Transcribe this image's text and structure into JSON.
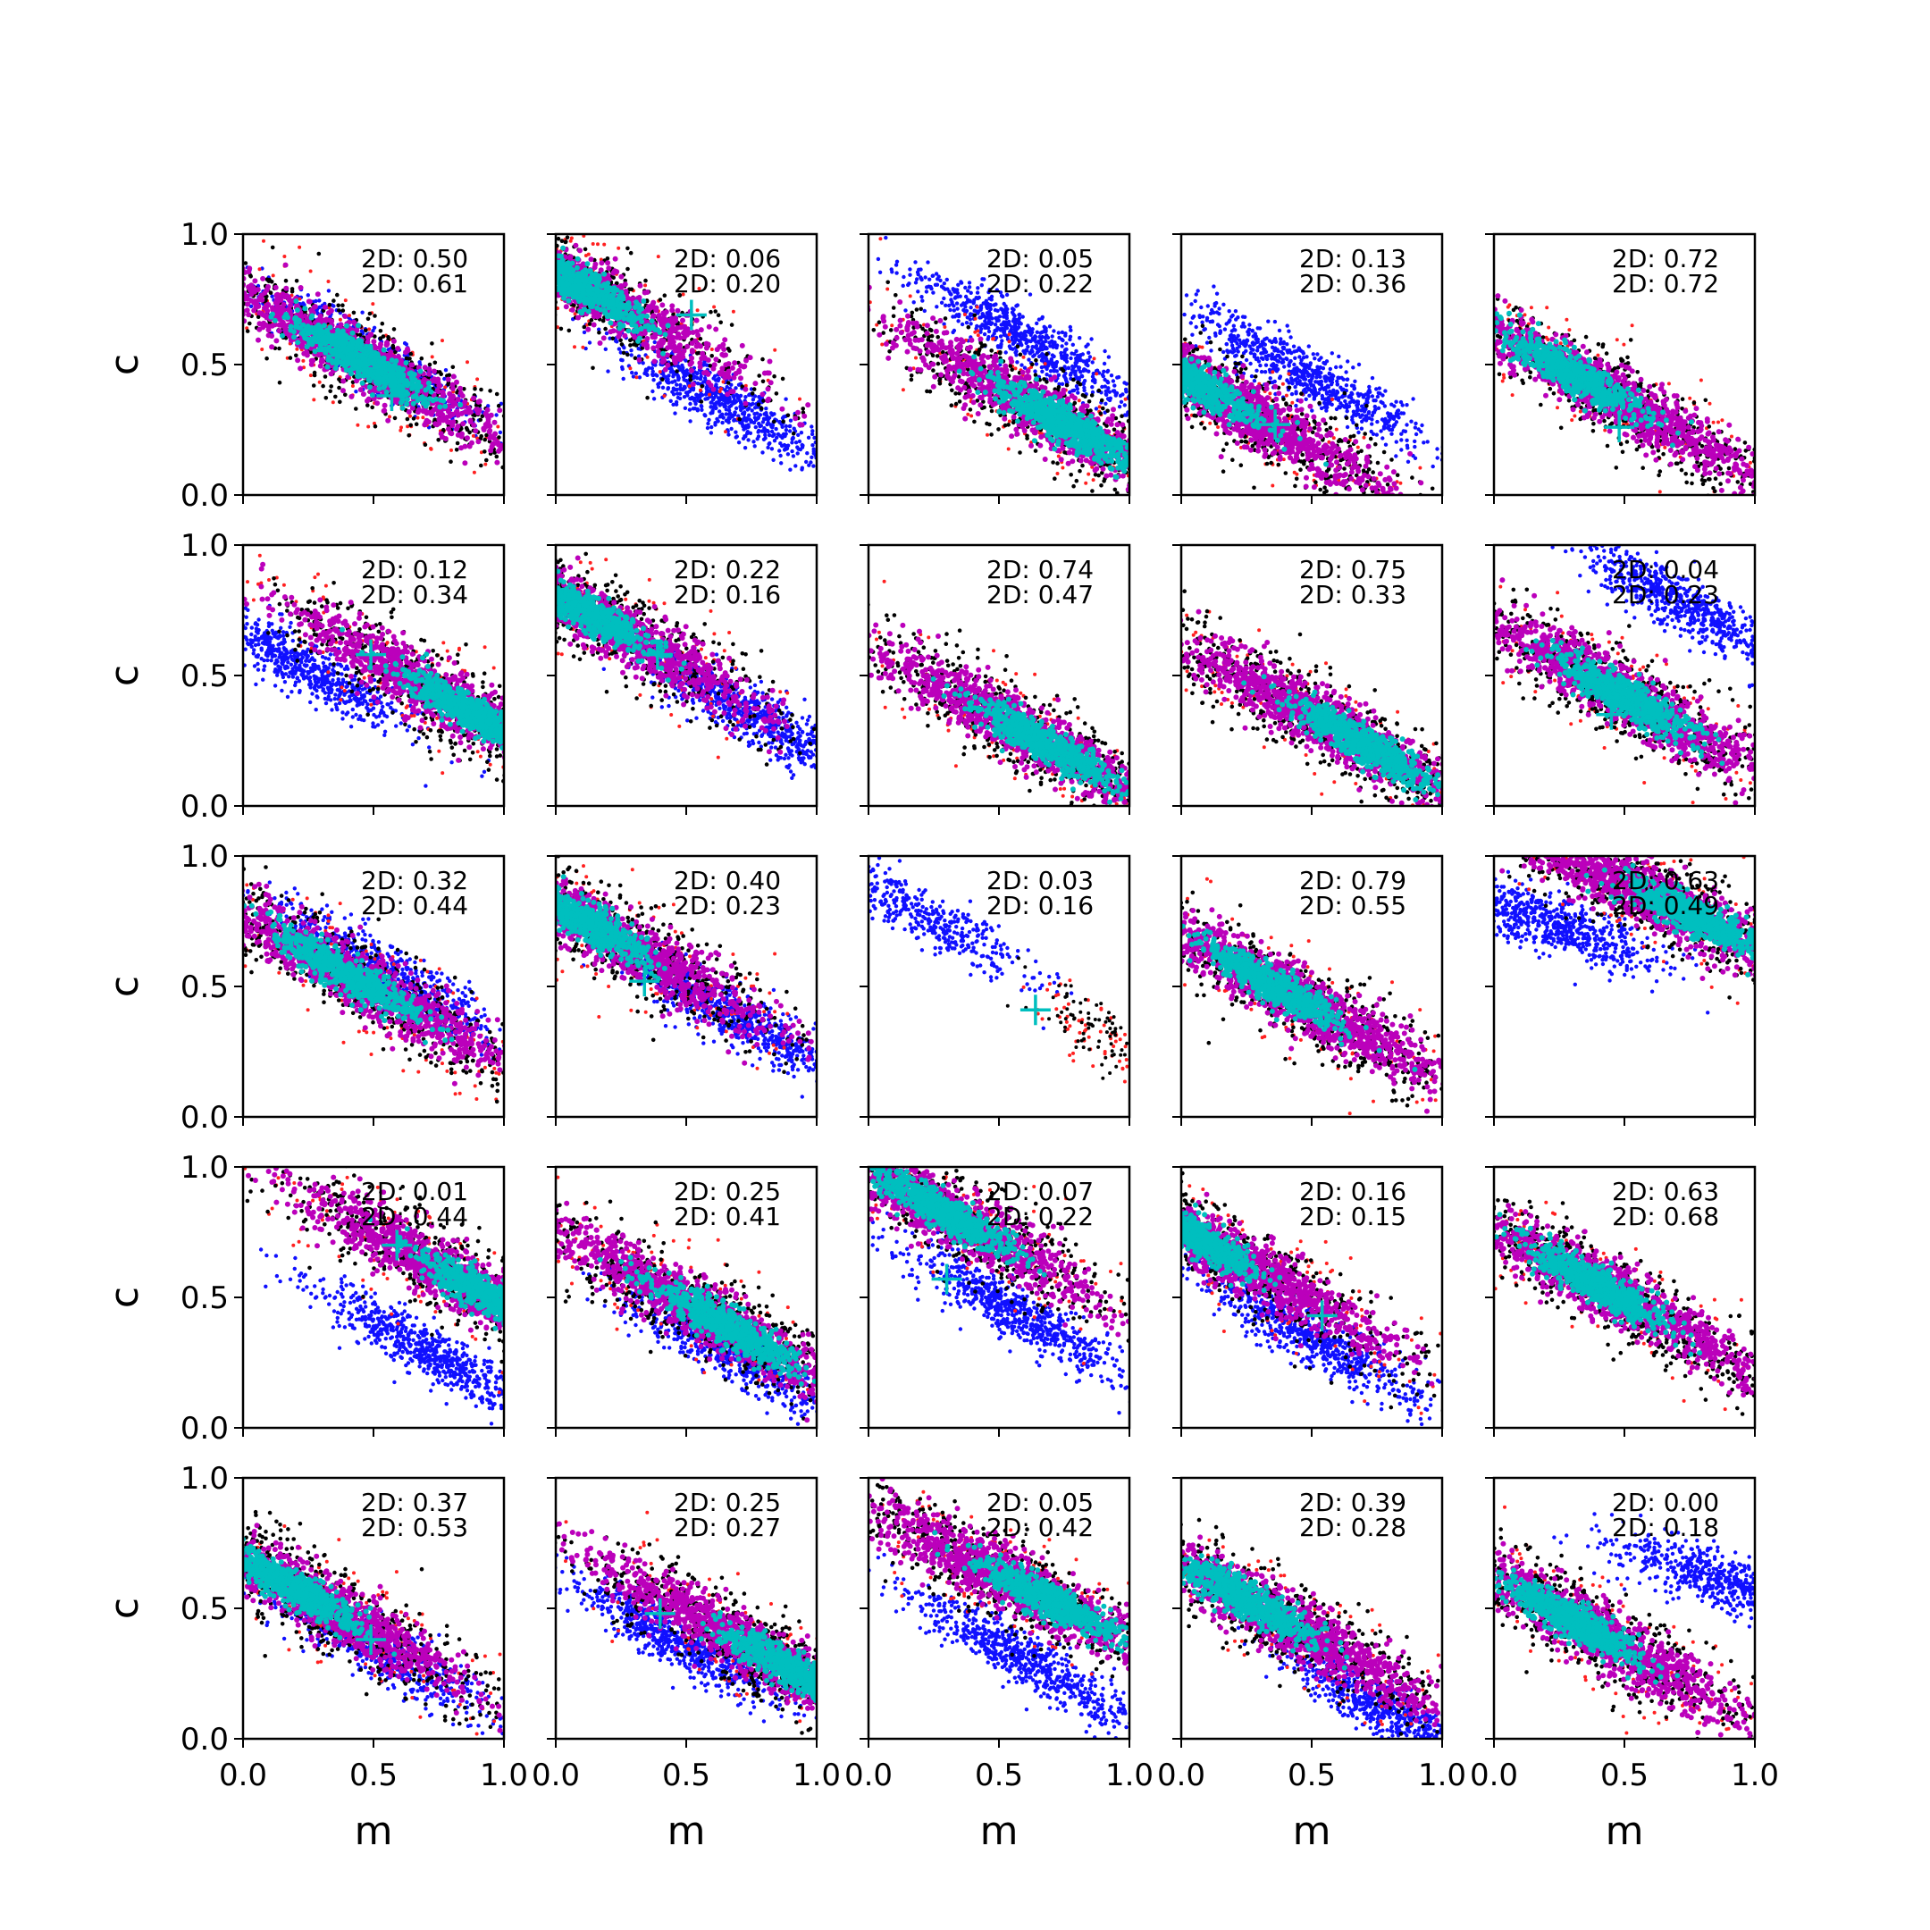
{
  "chart_data": {
    "type": "scatter",
    "layout": {
      "rows": 5,
      "cols": 5
    },
    "xlabel": "m",
    "ylabel": "c",
    "xlim": [
      0,
      1
    ],
    "ylim": [
      0,
      1
    ],
    "x_ticks": [
      "0.0",
      "0.5",
      "1.0"
    ],
    "y_ticks": [
      "0.0",
      "0.5",
      "1.0"
    ],
    "series_colors": {
      "outer": "#000000",
      "outlier": "#ff2020",
      "alternate": "#1010ff",
      "middle": "#bb00bb",
      "core": "#00bfbf",
      "marker": "#00bfbf"
    },
    "panels": [
      {
        "row": 0,
        "col": 0,
        "annotations": [
          "2D: 0.50",
          "2D: 0.61"
        ],
        "main": {
          "x": 0.45,
          "y": 0.52,
          "slope": -0.55
        },
        "alt": {
          "x": 0.45,
          "y": 0.55,
          "slope": -0.55,
          "present": true
        },
        "core_cx": 0.45,
        "marker": {
          "x": 0.57,
          "y": 0.38,
          "visible": true
        }
      },
      {
        "row": 0,
        "col": 1,
        "annotations": [
          "2D: 0.06",
          "2D: 0.20"
        ],
        "main": {
          "x": 0.1,
          "y": 0.8,
          "slope": -0.55
        },
        "alt": {
          "x": 0.65,
          "y": 0.35,
          "slope": -0.55,
          "present": true
        },
        "core_cx": 0.08,
        "marker": {
          "x": 0.52,
          "y": 0.69,
          "visible": true
        }
      },
      {
        "row": 0,
        "col": 2,
        "annotations": [
          "2D: 0.05",
          "2D: 0.22"
        ],
        "main": {
          "x": 0.7,
          "y": 0.3,
          "slope": -0.55
        },
        "alt": {
          "x": 0.6,
          "y": 0.6,
          "slope": -0.55,
          "present": true
        },
        "core_cx": 0.75,
        "marker": {
          "x": 0.7,
          "y": 0.32,
          "visible": true
        }
      },
      {
        "row": 0,
        "col": 3,
        "annotations": [
          "2D: 0.13",
          "2D: 0.36"
        ],
        "main": {
          "x": 0.25,
          "y": 0.32,
          "slope": -0.55
        },
        "alt": {
          "x": 0.5,
          "y": 0.45,
          "slope": -0.55,
          "present": true
        },
        "core_cx": 0.05,
        "marker": {
          "x": 0.36,
          "y": 0.27,
          "visible": true
        }
      },
      {
        "row": 0,
        "col": 4,
        "annotations": [
          "2D: 0.72",
          "2D: 0.72"
        ],
        "main": {
          "x": 0.45,
          "y": 0.38,
          "slope": -0.55
        },
        "alt": {
          "x": 0.45,
          "y": 0.38,
          "slope": -0.55,
          "present": false
        },
        "core_cx": 0.3,
        "marker": {
          "x": 0.48,
          "y": 0.26,
          "visible": true
        }
      },
      {
        "row": 1,
        "col": 0,
        "annotations": [
          "2D: 0.12",
          "2D: 0.34"
        ],
        "main": {
          "x": 0.8,
          "y": 0.4,
          "slope": -0.55
        },
        "alt": {
          "x": 0.2,
          "y": 0.55,
          "slope": -0.55,
          "present": true
        },
        "core_cx": 0.88,
        "marker": {
          "x": 0.49,
          "y": 0.58,
          "visible": true
        }
      },
      {
        "row": 1,
        "col": 1,
        "annotations": [
          "2D: 0.22",
          "2D: 0.16"
        ],
        "main": {
          "x": 0.2,
          "y": 0.7,
          "slope": -0.55
        },
        "alt": {
          "x": 0.75,
          "y": 0.35,
          "slope": -0.55,
          "present": true
        },
        "core_cx": 0.1,
        "marker": {
          "x": 0.39,
          "y": 0.58,
          "visible": true
        }
      },
      {
        "row": 1,
        "col": 2,
        "annotations": [
          "2D: 0.74",
          "2D: 0.47"
        ],
        "main": {
          "x": 0.6,
          "y": 0.28,
          "slope": -0.55
        },
        "alt": {
          "x": 0.6,
          "y": 0.28,
          "slope": -0.55,
          "present": false
        },
        "core_cx": 0.68,
        "marker": {
          "x": 0.7,
          "y": 0.2,
          "visible": false
        }
      },
      {
        "row": 1,
        "col": 3,
        "annotations": [
          "2D: 0.75",
          "2D: 0.33"
        ],
        "main": {
          "x": 0.55,
          "y": 0.32,
          "slope": -0.55
        },
        "alt": {
          "x": 0.55,
          "y": 0.32,
          "slope": -0.55,
          "present": false
        },
        "core_cx": 0.7,
        "marker": {
          "x": 0.7,
          "y": 0.2,
          "visible": false
        }
      },
      {
        "row": 1,
        "col": 4,
        "annotations": [
          "2D: 0.04",
          "2D: 0.23"
        ],
        "main": {
          "x": 0.5,
          "y": 0.42,
          "slope": -0.55
        },
        "alt": {
          "x": 0.75,
          "y": 0.75,
          "slope": -0.55,
          "present": true
        },
        "core_cx": 0.5,
        "marker": {
          "x": 0.45,
          "y": 0.35,
          "visible": true
        }
      },
      {
        "row": 2,
        "col": 0,
        "annotations": [
          "2D: 0.32",
          "2D: 0.44"
        ],
        "main": {
          "x": 0.45,
          "y": 0.52,
          "slope": -0.55
        },
        "alt": {
          "x": 0.55,
          "y": 0.55,
          "slope": -0.55,
          "present": true
        },
        "core_cx": 0.4,
        "marker": {
          "x": 0.55,
          "y": 0.5,
          "visible": false
        }
      },
      {
        "row": 2,
        "col": 1,
        "annotations": [
          "2D: 0.40",
          "2D: 0.23"
        ],
        "main": {
          "x": 0.2,
          "y": 0.7,
          "slope": -0.55
        },
        "alt": {
          "x": 0.7,
          "y": 0.38,
          "slope": -0.55,
          "present": true
        },
        "core_cx": 0.1,
        "marker": {
          "x": 0.34,
          "y": 0.52,
          "visible": true
        }
      },
      {
        "row": 2,
        "col": 2,
        "annotations": [
          "2D: 0.03",
          "2D: 0.16"
        ],
        "main": {
          "x": 0.88,
          "y": 0.32,
          "slope": -0.6
        },
        "alt": {
          "x": 0.2,
          "y": 0.78,
          "slope": -0.55,
          "present": true
        },
        "core_cx": 0.9,
        "marker": {
          "x": 0.64,
          "y": 0.41,
          "visible": true
        },
        "sparse": true
      },
      {
        "row": 2,
        "col": 3,
        "annotations": [
          "2D: 0.79",
          "2D: 0.55"
        ],
        "main": {
          "x": 0.45,
          "y": 0.45,
          "slope": -0.55
        },
        "alt": {
          "x": 0.45,
          "y": 0.45,
          "slope": -0.55,
          "present": false
        },
        "core_cx": 0.35,
        "marker": {
          "x": 0.45,
          "y": 0.45,
          "visible": false
        }
      },
      {
        "row": 2,
        "col": 4,
        "annotations": [
          "2D: 0.63",
          "2D: 0.49"
        ],
        "main": {
          "x": 0.65,
          "y": 0.82,
          "slope": -0.45
        },
        "alt": {
          "x": 0.2,
          "y": 0.75,
          "slope": -0.35,
          "present": true
        },
        "core_cx": 0.78,
        "marker": {
          "x": 0.65,
          "y": 0.8,
          "visible": false
        }
      },
      {
        "row": 3,
        "col": 0,
        "annotations": [
          "2D: 0.01",
          "2D: 0.44"
        ],
        "main": {
          "x": 0.8,
          "y": 0.58,
          "slope": -0.55
        },
        "alt": {
          "x": 0.7,
          "y": 0.3,
          "slope": -0.55,
          "present": true
        },
        "core_cx": 0.95,
        "marker": {
          "x": 0.59,
          "y": 0.7,
          "visible": true
        }
      },
      {
        "row": 3,
        "col": 1,
        "annotations": [
          "2D: 0.25",
          "2D: 0.41"
        ],
        "main": {
          "x": 0.55,
          "y": 0.45,
          "slope": -0.55
        },
        "alt": {
          "x": 0.65,
          "y": 0.3,
          "slope": -0.55,
          "present": true
        },
        "core_cx": 0.65,
        "marker": {
          "x": 0.55,
          "y": 0.4,
          "visible": false
        }
      },
      {
        "row": 3,
        "col": 2,
        "annotations": [
          "2D: 0.07",
          "2D: 0.22"
        ],
        "main": {
          "x": 0.3,
          "y": 0.82,
          "slope": -0.55
        },
        "alt": {
          "x": 0.55,
          "y": 0.45,
          "slope": -0.55,
          "present": true
        },
        "core_cx": 0.28,
        "marker": {
          "x": 0.3,
          "y": 0.57,
          "visible": true
        }
      },
      {
        "row": 3,
        "col": 3,
        "annotations": [
          "2D: 0.16",
          "2D: 0.15"
        ],
        "main": {
          "x": 0.2,
          "y": 0.65,
          "slope": -0.55
        },
        "alt": {
          "x": 0.5,
          "y": 0.35,
          "slope": -0.55,
          "present": true
        },
        "core_cx": 0.05,
        "marker": {
          "x": 0.54,
          "y": 0.43,
          "visible": true
        },
        "magentaOnlyCore": true
      },
      {
        "row": 3,
        "col": 4,
        "annotations": [
          "2D: 0.63",
          "2D: 0.68"
        ],
        "main": {
          "x": 0.45,
          "y": 0.52,
          "slope": -0.55
        },
        "alt": {
          "x": 0.45,
          "y": 0.52,
          "slope": -0.55,
          "present": false
        },
        "core_cx": 0.4,
        "marker": {
          "x": 0.45,
          "y": 0.5,
          "visible": false
        }
      },
      {
        "row": 4,
        "col": 0,
        "annotations": [
          "2D: 0.37",
          "2D: 0.53"
        ],
        "main": {
          "x": 0.3,
          "y": 0.52,
          "slope": -0.55
        },
        "alt": {
          "x": 0.5,
          "y": 0.35,
          "slope": -0.55,
          "present": true
        },
        "core_cx": 0.18,
        "marker": {
          "x": 0.49,
          "y": 0.38,
          "visible": true
        }
      },
      {
        "row": 4,
        "col": 1,
        "annotations": [
          "2D: 0.25",
          "2D: 0.27"
        ],
        "main": {
          "x": 0.75,
          "y": 0.35,
          "slope": -0.55
        },
        "alt": {
          "x": 0.45,
          "y": 0.38,
          "slope": -0.55,
          "present": true
        },
        "core_cx": 0.9,
        "marker": {
          "x": 0.4,
          "y": 0.48,
          "visible": true
        }
      },
      {
        "row": 4,
        "col": 2,
        "annotations": [
          "2D: 0.05",
          "2D: 0.42"
        ],
        "main": {
          "x": 0.55,
          "y": 0.6,
          "slope": -0.5
        },
        "alt": {
          "x": 0.6,
          "y": 0.3,
          "slope": -0.55,
          "present": true
        },
        "core_cx": 0.7,
        "marker": {
          "x": 0.55,
          "y": 0.55,
          "visible": false
        }
      },
      {
        "row": 4,
        "col": 3,
        "annotations": [
          "2D: 0.39",
          "2D: 0.28"
        ],
        "main": {
          "x": 0.4,
          "y": 0.45,
          "slope": -0.55
        },
        "alt": {
          "x": 0.8,
          "y": 0.1,
          "slope": -0.55,
          "present": true
        },
        "core_cx": 0.25,
        "marker": {
          "x": 0.4,
          "y": 0.45,
          "visible": false
        }
      },
      {
        "row": 4,
        "col": 4,
        "annotations": [
          "2D: 0.00",
          "2D: 0.18"
        ],
        "main": {
          "x": 0.4,
          "y": 0.4,
          "slope": -0.55
        },
        "alt": {
          "x": 0.9,
          "y": 0.6,
          "slope": -0.3,
          "present": true
        },
        "core_cx": 0.3,
        "marker": {
          "x": 0.4,
          "y": 0.4,
          "visible": false
        }
      }
    ]
  }
}
